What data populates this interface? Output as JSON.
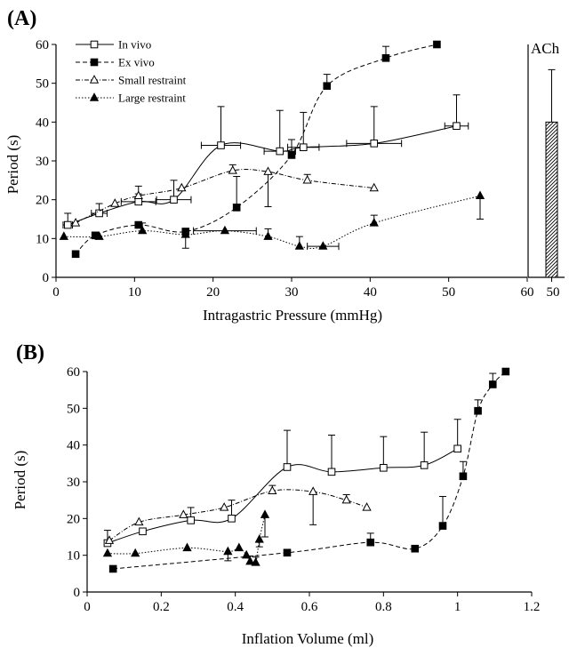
{
  "chart_data": [
    {
      "panel": "(A)",
      "type": "line",
      "xlabel": "Intragastric Pressure (mmHg)",
      "ylabel": "Period (s)",
      "xlim": [
        0,
        60
      ],
      "ylim": [
        0,
        60
      ],
      "xticks": [
        "0",
        "10",
        "20",
        "30",
        "40",
        "50",
        "60"
      ],
      "yticks": [
        "0",
        "10",
        "20",
        "30",
        "40",
        "50",
        "60"
      ],
      "legend_position": "top-left",
      "series": [
        {
          "name": "In vivo",
          "marker": "open-square",
          "line": "solid",
          "points": [
            {
              "x": 1.5,
              "y": 13.5,
              "yerr": 3,
              "xerr": 0.6
            },
            {
              "x": 5.5,
              "y": 16.5,
              "yerr": 2.5,
              "xerr": 1.0
            },
            {
              "x": 10.5,
              "y": 19.5,
              "yerr": 2,
              "xerr": 2.2
            },
            {
              "x": 15,
              "y": 20,
              "yerr": 5,
              "xerr": 2.2
            },
            {
              "x": 21,
              "y": 34,
              "yerr": 10,
              "xerr": 2.5
            },
            {
              "x": 28.5,
              "y": 32.5,
              "yerr": 10.5,
              "xerr": 2.0
            },
            {
              "x": 31.5,
              "y": 33.5,
              "yerr": 9,
              "xerr": 2.0
            },
            {
              "x": 40.5,
              "y": 34.5,
              "yerr": 9.5,
              "xerr": 3.5
            },
            {
              "x": 51,
              "y": 39,
              "yerr": 8,
              "xerr": 1.5
            }
          ]
        },
        {
          "name": "Ex vivo",
          "marker": "filled-square",
          "line": "dashed",
          "points": [
            {
              "x": 2.5,
              "y": 6
            },
            {
              "x": 5,
              "y": 10.8
            },
            {
              "x": 10.5,
              "y": 13.5
            },
            {
              "x": 16.5,
              "y": 11.8
            },
            {
              "x": 23,
              "y": 18,
              "yerr": 8
            },
            {
              "x": 30,
              "y": 31.5,
              "yerr": 4
            },
            {
              "x": 34.5,
              "y": 49.3,
              "yerr": 3
            },
            {
              "x": 42,
              "y": 56.5,
              "yerr": 3
            },
            {
              "x": 48.5,
              "y": 60
            }
          ]
        },
        {
          "name": "Small restraint",
          "marker": "open-triangle",
          "line": "dash-dot",
          "points": [
            {
              "x": 2.5,
              "y": 14
            },
            {
              "x": 7.5,
              "y": 19
            },
            {
              "x": 10.5,
              "y": 21,
              "yerr": 2.5
            },
            {
              "x": 16,
              "y": 23
            },
            {
              "x": 22.5,
              "y": 27.5,
              "yerr": 1.5
            },
            {
              "x": 27,
              "y": 27.2,
              "yerr": 9,
              "yerr_dir": "down"
            },
            {
              "x": 32,
              "y": 25,
              "yerr": 1.5
            },
            {
              "x": 40.5,
              "y": 23
            }
          ]
        },
        {
          "name": "Large restraint",
          "marker": "filled-triangle",
          "line": "dotted",
          "points": [
            {
              "x": 1,
              "y": 10.5
            },
            {
              "x": 5.5,
              "y": 10.5
            },
            {
              "x": 11,
              "y": 12,
              "yerr": 2
            },
            {
              "x": 16.5,
              "y": 11,
              "yerr": 3.5,
              "yerr_dir": "down"
            },
            {
              "x": 21.5,
              "y": 12,
              "xerr": 4
            },
            {
              "x": 27,
              "y": 10.5,
              "yerr": 2
            },
            {
              "x": 31,
              "y": 8,
              "yerr": 2.5
            },
            {
              "x": 34,
              "y": 8,
              "xerr": 2
            },
            {
              "x": 40.5,
              "y": 14,
              "yerr": 2
            },
            {
              "x": 54,
              "y": 21,
              "yerr": 6,
              "yerr_dir": "down"
            }
          ]
        }
      ],
      "inset": {
        "label": "ACh",
        "type": "bar",
        "xtick": "50",
        "tick_value": 50,
        "value": 40,
        "yerr": 13.5,
        "pattern": "diagonal-hatch"
      }
    },
    {
      "panel": "(B)",
      "type": "line",
      "xlabel": "Inflation Volume (ml)",
      "ylabel": "Period (s)",
      "xlim": [
        0,
        1.2
      ],
      "ylim": [
        0,
        60
      ],
      "xticks": [
        "0",
        "0.2",
        "0.4",
        "0.6",
        "0.8",
        "1",
        "1.2"
      ],
      "yticks": [
        "0",
        "10",
        "20",
        "30",
        "40",
        "50",
        "60"
      ],
      "series": [
        {
          "marker": "open-square",
          "line": "solid",
          "points": [
            {
              "x": 0.055,
              "y": 13.3,
              "yerr": 3.5
            },
            {
              "x": 0.15,
              "y": 16.5
            },
            {
              "x": 0.28,
              "y": 19.5,
              "yerr": 3.5
            },
            {
              "x": 0.39,
              "y": 20,
              "yerr": 5
            },
            {
              "x": 0.54,
              "y": 34,
              "yerr": 10
            },
            {
              "x": 0.66,
              "y": 32.7,
              "yerr": 10
            },
            {
              "x": 0.8,
              "y": 33.8,
              "yerr": 8.5
            },
            {
              "x": 0.91,
              "y": 34.5,
              "yerr": 9
            },
            {
              "x": 1.0,
              "y": 39,
              "yerr": 8
            }
          ]
        },
        {
          "marker": "filled-square",
          "line": "dashed",
          "points": [
            {
              "x": 0.07,
              "y": 6.3
            },
            {
              "x": 0.54,
              "y": 10.7
            },
            {
              "x": 0.765,
              "y": 13.5,
              "yerr": 2.5
            },
            {
              "x": 0.885,
              "y": 11.8
            },
            {
              "x": 0.96,
              "y": 18,
              "yerr": 8
            },
            {
              "x": 1.015,
              "y": 31.5,
              "yerr": 4
            },
            {
              "x": 1.055,
              "y": 49.3,
              "yerr": 3
            },
            {
              "x": 1.095,
              "y": 56.5,
              "yerr": 3
            },
            {
              "x": 1.13,
              "y": 60
            }
          ]
        },
        {
          "marker": "open-triangle",
          "line": "dash-dot",
          "points": [
            {
              "x": 0.06,
              "y": 14
            },
            {
              "x": 0.14,
              "y": 19
            },
            {
              "x": 0.26,
              "y": 21
            },
            {
              "x": 0.37,
              "y": 23
            },
            {
              "x": 0.5,
              "y": 27.5,
              "yerr": 1.5
            },
            {
              "x": 0.61,
              "y": 27.3,
              "yerr": 9,
              "yerr_dir": "down"
            },
            {
              "x": 0.7,
              "y": 25,
              "yerr": 1.5
            },
            {
              "x": 0.755,
              "y": 23
            }
          ]
        },
        {
          "marker": "filled-triangle",
          "line": "dotted",
          "points": [
            {
              "x": 0.055,
              "y": 10.5
            },
            {
              "x": 0.13,
              "y": 10.5
            },
            {
              "x": 0.27,
              "y": 12
            },
            {
              "x": 0.38,
              "y": 11,
              "yerr": 2.5,
              "yerr_dir": "down"
            },
            {
              "x": 0.41,
              "y": 12
            },
            {
              "x": 0.43,
              "y": 10
            },
            {
              "x": 0.44,
              "y": 8.3,
              "yerr": 1.5
            },
            {
              "x": 0.455,
              "y": 8,
              "yerr": 1.5
            },
            {
              "x": 0.465,
              "y": 14.3,
              "yerr": 2,
              "yerr_dir": "down"
            },
            {
              "x": 0.48,
              "y": 21,
              "yerr": 6,
              "yerr_dir": "down"
            }
          ]
        }
      ]
    }
  ]
}
